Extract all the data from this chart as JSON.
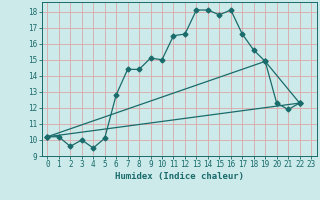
{
  "xlabel": "Humidex (Indice chaleur)",
  "bg_color": "#cceaea",
  "line_color": "#1a6b6b",
  "grid_color": "#dba8a8",
  "xlim": [
    -0.5,
    23.5
  ],
  "ylim": [
    9,
    18.6
  ],
  "xticks": [
    0,
    1,
    2,
    3,
    4,
    5,
    6,
    7,
    8,
    9,
    10,
    11,
    12,
    13,
    14,
    15,
    16,
    17,
    18,
    19,
    20,
    21,
    22,
    23
  ],
  "yticks": [
    9,
    10,
    11,
    12,
    13,
    14,
    15,
    16,
    17,
    18
  ],
  "line1_x": [
    0,
    1,
    2,
    3,
    4,
    5,
    6,
    7,
    8,
    9,
    10,
    11,
    12,
    13,
    14,
    15,
    16,
    17,
    18,
    19,
    20,
    21,
    22
  ],
  "line1_y": [
    10.2,
    10.2,
    9.6,
    10.0,
    9.5,
    10.1,
    12.8,
    14.4,
    14.4,
    15.1,
    15.0,
    16.5,
    16.6,
    18.1,
    18.1,
    17.8,
    18.1,
    16.6,
    15.6,
    14.9,
    12.3,
    11.9,
    12.3
  ],
  "line2_x": [
    0,
    19,
    22
  ],
  "line2_y": [
    10.2,
    14.9,
    12.3
  ],
  "line3_x": [
    0,
    22
  ],
  "line3_y": [
    10.2,
    12.3
  ],
  "marker_size": 2.5,
  "linewidth": 0.9,
  "tick_fontsize": 5.5,
  "xlabel_fontsize": 6.5
}
